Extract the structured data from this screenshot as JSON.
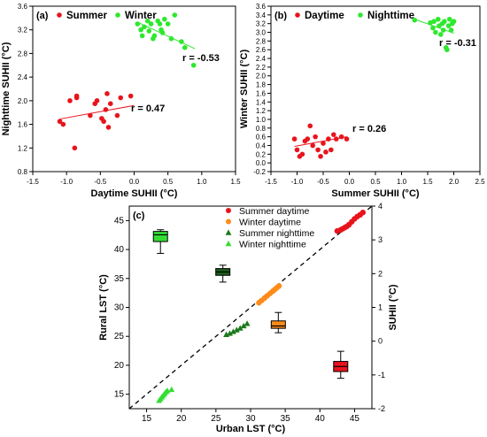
{
  "chart_data": [
    {
      "panel_label": "(a)",
      "type": "scatter",
      "xlabel": "Daytime SUHII (°C)",
      "ylabel": "Nighttime SUHII (°C)",
      "xlim": [
        -1.5,
        1.5
      ],
      "ylim": [
        0.8,
        3.6
      ],
      "xticks": [
        "-1.5",
        "-1.0",
        "-0.5",
        "0.0",
        "0.5",
        "1.0",
        "1.5"
      ],
      "yticks": [
        "0.8",
        "1.2",
        "1.6",
        "2.0",
        "2.4",
        "2.8",
        "3.2",
        "3.6"
      ],
      "legend": "top-left",
      "series": [
        {
          "name": "Summer",
          "color": "#e8141c",
          "points": [
            [
              -1.1,
              1.65
            ],
            [
              -1.05,
              1.6
            ],
            [
              -0.95,
              2.0
            ],
            [
              -0.88,
              1.2
            ],
            [
              -0.85,
              2.05
            ],
            [
              -0.85,
              2.08
            ],
            [
              -0.65,
              1.75
            ],
            [
              -0.58,
              1.95
            ],
            [
              -0.55,
              2.0
            ],
            [
              -0.48,
              1.7
            ],
            [
              -0.45,
              1.65
            ],
            [
              -0.42,
              1.85
            ],
            [
              -0.4,
              2.12
            ],
            [
              -0.38,
              1.55
            ],
            [
              -0.35,
              1.95
            ],
            [
              -0.25,
              1.75
            ],
            [
              -0.2,
              2.05
            ],
            [
              -0.05,
              2.08
            ]
          ],
          "fit": [
            [
              -1.1,
              1.69
            ],
            [
              0.0,
              1.92
            ]
          ],
          "r_label": "r = 0.47"
        },
        {
          "name": "Winter",
          "color": "#2ee82e",
          "points": [
            [
              0.05,
              3.3
            ],
            [
              0.1,
              3.2
            ],
            [
              0.12,
              3.1
            ],
            [
              0.15,
              3.25
            ],
            [
              0.2,
              3.35
            ],
            [
              0.22,
              3.18
            ],
            [
              0.25,
              3.3
            ],
            [
              0.28,
              3.05
            ],
            [
              0.3,
              3.1
            ],
            [
              0.35,
              3.35
            ],
            [
              0.38,
              3.3
            ],
            [
              0.4,
              3.2
            ],
            [
              0.42,
              3.15
            ],
            [
              0.45,
              3.38
            ],
            [
              0.5,
              3.3
            ],
            [
              0.55,
              3.05
            ],
            [
              0.6,
              3.45
            ],
            [
              0.7,
              3.0
            ],
            [
              0.75,
              2.9
            ],
            [
              0.88,
              2.6
            ]
          ],
          "fit": [
            [
              0.05,
              3.33
            ],
            [
              0.9,
              2.88
            ]
          ],
          "r_label": "r = -0.53"
        }
      ]
    },
    {
      "panel_label": "(b)",
      "type": "scatter",
      "xlabel": "Summer SUHII (°C)",
      "ylabel": "Winter SUHII (°C)",
      "xlim": [
        -1.5,
        2.5
      ],
      "ylim": [
        -0.2,
        3.6
      ],
      "xticks": [
        "-1.5",
        "-1.0",
        "-0.5",
        "0.0",
        "0.5",
        "1.0",
        "1.5",
        "2.0",
        "2.5"
      ],
      "yticks": [
        "-0.2",
        "0.0",
        "0.2",
        "0.4",
        "0.6",
        "0.8",
        "1.0",
        "1.2",
        "1.4",
        "1.6",
        "1.8",
        "2.0",
        "2.2",
        "2.4",
        "2.6",
        "2.8",
        "3.0",
        "3.2",
        "3.4",
        "3.6"
      ],
      "legend": "top-left",
      "series": [
        {
          "name": "Daytime",
          "color": "#e8141c",
          "points": [
            [
              -1.05,
              0.55
            ],
            [
              -1.0,
              0.3
            ],
            [
              -0.95,
              0.15
            ],
            [
              -0.9,
              0.2
            ],
            [
              -0.85,
              0.5
            ],
            [
              -0.8,
              0.55
            ],
            [
              -0.75,
              0.85
            ],
            [
              -0.7,
              0.4
            ],
            [
              -0.65,
              0.6
            ],
            [
              -0.6,
              0.3
            ],
            [
              -0.55,
              0.15
            ],
            [
              -0.5,
              0.45
            ],
            [
              -0.45,
              0.25
            ],
            [
              -0.4,
              0.55
            ],
            [
              -0.35,
              0.3
            ],
            [
              -0.3,
              0.65
            ],
            [
              -0.25,
              0.55
            ],
            [
              -0.15,
              0.6
            ],
            [
              -0.05,
              0.55
            ]
          ],
          "fit": [
            [
              -1.05,
              0.38
            ],
            [
              -0.05,
              0.6
            ]
          ],
          "r_label": "r = 0.26"
        },
        {
          "name": "Nighttime",
          "color": "#2ee82e",
          "points": [
            [
              1.25,
              3.28
            ],
            [
              1.55,
              3.22
            ],
            [
              1.6,
              3.1
            ],
            [
              1.62,
              3.25
            ],
            [
              1.65,
              3.0
            ],
            [
              1.7,
              3.3
            ],
            [
              1.72,
              3.15
            ],
            [
              1.75,
              2.95
            ],
            [
              1.78,
              3.2
            ],
            [
              1.8,
              3.05
            ],
            [
              1.82,
              3.25
            ],
            [
              1.85,
              2.65
            ],
            [
              1.87,
              2.6
            ],
            [
              1.9,
              3.15
            ],
            [
              1.92,
              3.3
            ],
            [
              1.95,
              3.05
            ],
            [
              1.97,
              3.2
            ],
            [
              2.0,
              3.25
            ]
          ],
          "fit": [
            [
              1.25,
              3.3
            ],
            [
              2.0,
              2.98
            ]
          ],
          "r_label": "r = -0.31"
        }
      ]
    },
    {
      "panel_label": "(c)",
      "type": "scatter",
      "xlabel": "Urban LST (°C)",
      "ylabel": "Rural LST (°C)",
      "y2label": "SUHII (°C)",
      "xlim": [
        12.5,
        47.5
      ],
      "ylim": [
        12.5,
        47.5
      ],
      "y2lim": [
        -2,
        4
      ],
      "xticks": [
        "15",
        "20",
        "25",
        "30",
        "35",
        "40",
        "45"
      ],
      "yticks": [
        "15",
        "20",
        "25",
        "30",
        "35",
        "40",
        "45"
      ],
      "y2ticks": [
        "-2",
        "-1",
        "0",
        "1",
        "2",
        "3",
        "4"
      ],
      "legend": "top-center",
      "identity_line": true,
      "series": [
        {
          "name": "Summer daytime",
          "marker": "circle",
          "color": "#e8141c",
          "points": [
            [
              42.5,
              43.2
            ],
            [
              43.0,
              43.4
            ],
            [
              43.3,
              43.6
            ],
            [
              43.6,
              43.8
            ],
            [
              43.9,
              44.0
            ],
            [
              44.2,
              44.3
            ],
            [
              44.6,
              44.8
            ],
            [
              45.0,
              45.3
            ],
            [
              45.4,
              45.7
            ],
            [
              45.8,
              46.0
            ],
            [
              46.2,
              46.4
            ]
          ],
          "box": {
            "x": 43,
            "min": -1.1,
            "q1": -0.9,
            "median": -0.75,
            "q3": -0.6,
            "max": -0.3
          }
        },
        {
          "name": "Winter daytime",
          "marker": "circle",
          "color": "#ff8c1a",
          "points": [
            [
              31.2,
              30.8
            ],
            [
              31.6,
              31.2
            ],
            [
              32.0,
              31.6
            ],
            [
              32.4,
              32.0
            ],
            [
              32.8,
              32.4
            ],
            [
              33.2,
              32.8
            ],
            [
              33.5,
              33.1
            ],
            [
              33.8,
              33.4
            ],
            [
              34.1,
              33.7
            ]
          ],
          "box": {
            "x": 34,
            "min": 0.25,
            "q1": 0.38,
            "median": 0.45,
            "q3": 0.6,
            "max": 0.85
          }
        },
        {
          "name": "Summer nighttime",
          "marker": "triangle",
          "color": "#1a7a1a",
          "points": [
            [
              26.5,
              25.3
            ],
            [
              27.0,
              25.5
            ],
            [
              27.5,
              25.8
            ],
            [
              28.0,
              26.1
            ],
            [
              28.5,
              26.4
            ],
            [
              29.0,
              26.8
            ],
            [
              29.5,
              27.2
            ]
          ],
          "box": {
            "x": 26,
            "min": 1.75,
            "q1": 1.95,
            "median": 2.05,
            "q3": 2.15,
            "max": 2.25
          }
        },
        {
          "name": "Winter nighttime",
          "marker": "triangle",
          "color": "#33dd33",
          "points": [
            [
              16.8,
              13.9
            ],
            [
              17.0,
              14.2
            ],
            [
              17.2,
              14.5
            ],
            [
              17.4,
              14.8
            ],
            [
              17.6,
              15.1
            ],
            [
              17.8,
              15.4
            ],
            [
              18.0,
              15.6
            ],
            [
              18.6,
              15.8
            ]
          ],
          "box": {
            "x": 17,
            "min": 2.6,
            "q1": 2.95,
            "median": 3.15,
            "q3": 3.25,
            "max": 3.3
          }
        }
      ]
    }
  ]
}
